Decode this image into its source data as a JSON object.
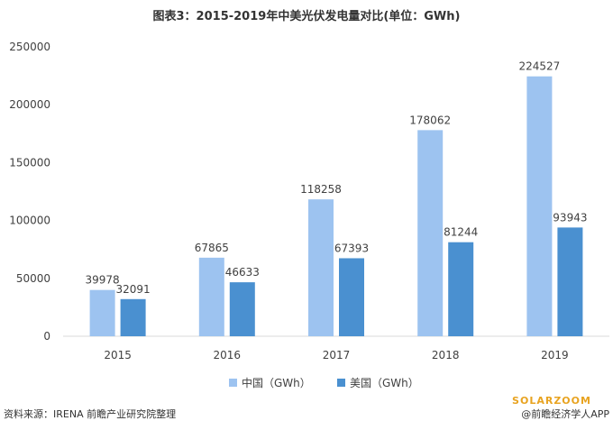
{
  "chart_data": {
    "type": "bar",
    "title": "图表3：2015-2019年中美光伏发电量对比(单位：GWh)",
    "categories": [
      "2015",
      "2016",
      "2017",
      "2018",
      "2019"
    ],
    "series": [
      {
        "name": "中国（GWh）",
        "values": [
          39978,
          67865,
          118258,
          178062,
          224527
        ],
        "color": "#9dc3f0"
      },
      {
        "name": "美国（GWh）",
        "values": [
          32091,
          46633,
          67393,
          81244,
          93943
        ],
        "color": "#4a90d0"
      }
    ],
    "xlabel": "",
    "ylabel": "",
    "ylim": [
      0,
      250000
    ],
    "yticks": [
      "0",
      "50000",
      "100000",
      "150000",
      "200000",
      "250000"
    ],
    "grid": false,
    "legend_position": "bottom"
  },
  "footer": {
    "source": "资料来源：IRENA 前瞻产业研究院整理",
    "credit": "@前瞻经济学人APP",
    "brand": "SOLARZOOM"
  }
}
